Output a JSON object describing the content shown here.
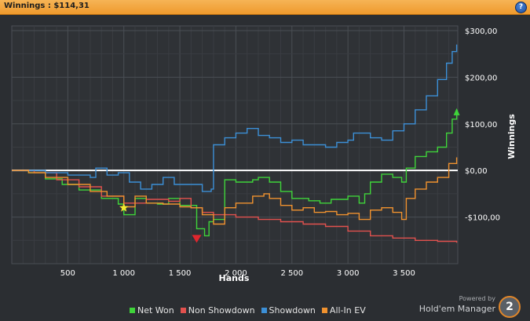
{
  "window": {
    "title": "Winnings : $114,31",
    "help_label": "?"
  },
  "chart_data": {
    "type": "line",
    "xlabel": "Hands",
    "ylabel": "Winnings",
    "xlim": [
      0,
      3980
    ],
    "ylim": [
      -200,
      310
    ],
    "x_ticks": [
      500,
      1000,
      1500,
      2000,
      2500,
      3000,
      3500
    ],
    "x_tick_labels": [
      "500",
      "1 000",
      "1 500",
      "2 000",
      "2 500",
      "3 000",
      "3 500"
    ],
    "y_ticks": [
      300,
      200,
      100,
      0,
      -100
    ],
    "y_tick_labels": [
      "$300,00",
      "$200,00",
      "$100,00",
      "$0,00",
      "-$100,00"
    ],
    "grid": true,
    "legend_position": "bottom",
    "series": [
      {
        "name": "Net Won",
        "color": "#3fd43a",
        "points": [
          [
            0,
            0
          ],
          [
            150,
            -5
          ],
          [
            300,
            -18
          ],
          [
            450,
            -30
          ],
          [
            600,
            -42
          ],
          [
            800,
            -60
          ],
          [
            950,
            -72
          ],
          [
            1000,
            -95
          ],
          [
            1100,
            -60
          ],
          [
            1200,
            -70
          ],
          [
            1300,
            -72
          ],
          [
            1400,
            -60
          ],
          [
            1500,
            -75
          ],
          [
            1650,
            -125
          ],
          [
            1720,
            -140
          ],
          [
            1760,
            -110
          ],
          [
            1800,
            -105
          ],
          [
            1900,
            -20
          ],
          [
            2000,
            -25
          ],
          [
            2150,
            -20
          ],
          [
            2200,
            -15
          ],
          [
            2300,
            -25
          ],
          [
            2400,
            -45
          ],
          [
            2500,
            -60
          ],
          [
            2650,
            -65
          ],
          [
            2750,
            -70
          ],
          [
            2850,
            -62
          ],
          [
            3000,
            -55
          ],
          [
            3100,
            -70
          ],
          [
            3150,
            -50
          ],
          [
            3200,
            -25
          ],
          [
            3300,
            -8
          ],
          [
            3400,
            -15
          ],
          [
            3480,
            -25
          ],
          [
            3520,
            5
          ],
          [
            3600,
            30
          ],
          [
            3700,
            40
          ],
          [
            3800,
            50
          ],
          [
            3880,
            80
          ],
          [
            3930,
            110
          ],
          [
            3970,
            120
          ]
        ]
      },
      {
        "name": "Non Showdown",
        "color": "#e2514e",
        "points": [
          [
            0,
            0
          ],
          [
            200,
            -5
          ],
          [
            400,
            -20
          ],
          [
            600,
            -35
          ],
          [
            800,
            -55
          ],
          [
            1000,
            -70
          ],
          [
            1200,
            -62
          ],
          [
            1400,
            -66
          ],
          [
            1500,
            -60
          ],
          [
            1600,
            -80
          ],
          [
            1700,
            -90
          ],
          [
            1800,
            -95
          ],
          [
            2000,
            -100
          ],
          [
            2200,
            -105
          ],
          [
            2400,
            -110
          ],
          [
            2600,
            -115
          ],
          [
            2800,
            -120
          ],
          [
            3000,
            -130
          ],
          [
            3200,
            -140
          ],
          [
            3400,
            -145
          ],
          [
            3600,
            -150
          ],
          [
            3800,
            -152
          ],
          [
            3970,
            -155
          ]
        ]
      },
      {
        "name": "Showdown",
        "color": "#3c8fd6",
        "points": [
          [
            0,
            0
          ],
          [
            300,
            -5
          ],
          [
            500,
            -10
          ],
          [
            700,
            -15
          ],
          [
            750,
            5
          ],
          [
            850,
            -10
          ],
          [
            950,
            -5
          ],
          [
            1050,
            -25
          ],
          [
            1150,
            -40
          ],
          [
            1250,
            -30
          ],
          [
            1350,
            -15
          ],
          [
            1450,
            -30
          ],
          [
            1600,
            -30
          ],
          [
            1700,
            -45
          ],
          [
            1780,
            -40
          ],
          [
            1800,
            55
          ],
          [
            1900,
            70
          ],
          [
            2000,
            80
          ],
          [
            2100,
            90
          ],
          [
            2200,
            75
          ],
          [
            2300,
            70
          ],
          [
            2400,
            60
          ],
          [
            2500,
            65
          ],
          [
            2600,
            55
          ],
          [
            2800,
            50
          ],
          [
            2900,
            60
          ],
          [
            3000,
            65
          ],
          [
            3050,
            80
          ],
          [
            3150,
            80
          ],
          [
            3200,
            70
          ],
          [
            3300,
            65
          ],
          [
            3400,
            85
          ],
          [
            3500,
            100
          ],
          [
            3600,
            130
          ],
          [
            3700,
            160
          ],
          [
            3800,
            195
          ],
          [
            3880,
            230
          ],
          [
            3930,
            255
          ],
          [
            3970,
            270
          ]
        ]
      },
      {
        "name": "All-In EV",
        "color": "#f0922f",
        "points": [
          [
            0,
            0
          ],
          [
            150,
            -5
          ],
          [
            300,
            -15
          ],
          [
            500,
            -30
          ],
          [
            700,
            -45
          ],
          [
            850,
            -55
          ],
          [
            1000,
            -78
          ],
          [
            1100,
            -55
          ],
          [
            1200,
            -70
          ],
          [
            1350,
            -72
          ],
          [
            1500,
            -78
          ],
          [
            1600,
            -80
          ],
          [
            1700,
            -95
          ],
          [
            1800,
            -115
          ],
          [
            1900,
            -80
          ],
          [
            2000,
            -70
          ],
          [
            2150,
            -55
          ],
          [
            2250,
            -50
          ],
          [
            2300,
            -60
          ],
          [
            2400,
            -75
          ],
          [
            2500,
            -85
          ],
          [
            2600,
            -80
          ],
          [
            2700,
            -90
          ],
          [
            2800,
            -88
          ],
          [
            2900,
            -95
          ],
          [
            3000,
            -92
          ],
          [
            3100,
            -105
          ],
          [
            3200,
            -85
          ],
          [
            3300,
            -80
          ],
          [
            3400,
            -90
          ],
          [
            3480,
            -105
          ],
          [
            3520,
            -60
          ],
          [
            3600,
            -40
          ],
          [
            3700,
            -25
          ],
          [
            3800,
            -15
          ],
          [
            3900,
            15
          ],
          [
            3970,
            28
          ]
        ]
      }
    ],
    "markers": [
      {
        "type": "star",
        "color": "#f3ea2e",
        "x": 1000,
        "y": -80
      },
      {
        "type": "triangle-down",
        "color": "#e0262e",
        "x": 1650,
        "y": -145
      },
      {
        "type": "triangle-up",
        "color": "#3fd43a",
        "x": 3970,
        "y": 125
      }
    ]
  },
  "legend": {
    "items": [
      {
        "label": "Net Won",
        "color": "#3fd43a"
      },
      {
        "label": "Non Showdown",
        "color": "#e2514e"
      },
      {
        "label": "Showdown",
        "color": "#3c8fd6"
      },
      {
        "label": "All-In EV",
        "color": "#f0922f"
      }
    ]
  },
  "branding": {
    "powered_by": "Powered by",
    "product": "Hold'em Manager",
    "logo_text": "2"
  }
}
